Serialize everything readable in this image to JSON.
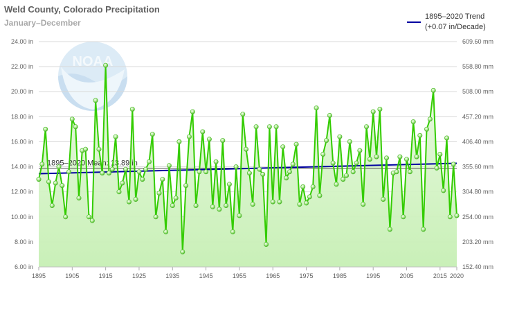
{
  "chart_data": {
    "type": "line",
    "title": "Weld County, Colorado Precipitation",
    "subtitle": "January–December",
    "x_start": 1895,
    "x_end": 2020,
    "xlim": [
      1895,
      2020
    ],
    "ylim": [
      6,
      24
    ],
    "y_ticks": [
      6,
      8,
      10,
      12,
      14,
      16,
      18,
      20,
      22,
      24
    ],
    "y_tick_labels": [
      "6.00 in",
      "8.00 in",
      "10.00 in",
      "12.00 in",
      "14.00 in",
      "16.00 in",
      "18.00 in",
      "20.00 in",
      "22.00 in",
      "24.00 in"
    ],
    "y2_tick_labels": [
      "152.40 mm",
      "203.20 mm",
      "254.00 mm",
      "304.80 mm",
      "355.60 mm",
      "406.40 mm",
      "457.20 mm",
      "508.00 mm",
      "558.80 mm",
      "609.60 mm"
    ],
    "x_ticks": [
      1895,
      1905,
      1915,
      1925,
      1935,
      1945,
      1955,
      1965,
      1975,
      1985,
      1995,
      2005,
      2015,
      2020
    ],
    "x_tick_labels": [
      "1895",
      "1905",
      "1915",
      "1925",
      "1935",
      "1945",
      "1955",
      "1965",
      "1975",
      "1985",
      "1995",
      "2005",
      "2015",
      "2020"
    ],
    "grid": true,
    "legend_position": "top-right",
    "series": [
      {
        "name": "Precipitation",
        "color": "#33cc00",
        "values": [
          13.0,
          14.2,
          17.0,
          12.8,
          10.9,
          12.7,
          14.0,
          12.5,
          10.0,
          13.6,
          17.8,
          17.2,
          11.5,
          15.3,
          15.4,
          10.0,
          9.7,
          19.3,
          15.4,
          13.5,
          22.1,
          13.5,
          13.8,
          16.4,
          12.0,
          12.7,
          13.8,
          11.2,
          18.6,
          11.4,
          13.6,
          13.0,
          13.8,
          14.4,
          16.6,
          10.0,
          11.9,
          13.0,
          8.8,
          14.1,
          10.9,
          11.5,
          16.0,
          7.2,
          12.5,
          16.4,
          18.4,
          10.9,
          13.6,
          16.8,
          13.6,
          16.2,
          10.8,
          14.4,
          10.6,
          16.1,
          10.9,
          12.6,
          8.8,
          14.0,
          10.1,
          18.2,
          15.4,
          13.5,
          11.0,
          17.2,
          13.8,
          13.4,
          7.8,
          17.2,
          11.2,
          17.2,
          11.2,
          15.6,
          13.1,
          13.6,
          14.2,
          15.8,
          11.0,
          12.4,
          11.1,
          11.6,
          12.4,
          18.7,
          11.7,
          15.0,
          16.1,
          18.1,
          14.3,
          12.6,
          16.4,
          13.0,
          13.3,
          16.0,
          13.6,
          14.3,
          15.3,
          11.0,
          17.2,
          14.6,
          18.4,
          14.8,
          18.6,
          11.4,
          14.7,
          9.0,
          13.5,
          13.6,
          14.8,
          10.0,
          14.6,
          13.6,
          17.6,
          14.8,
          16.5,
          9.0,
          17.0,
          17.8,
          20.1,
          13.9,
          15.0,
          12.1,
          16.3,
          10.0,
          14.2,
          10.1
        ]
      },
      {
        "name": "1895-2020 Trend",
        "label": "(+0.07 in/Decade)",
        "color": "#0000a0",
        "endpoints": [
          [
            1895,
            13.45
          ],
          [
            2020,
            14.28
          ]
        ]
      },
      {
        "name": "1895-2020 Mean",
        "label": "1895–2020 Mean: 13.89 in",
        "value": 13.89,
        "color": "#606060"
      }
    ]
  },
  "legend": {
    "trend_title": "1895–2020 Trend",
    "trend_rate": "(+0.07 in/Decade)"
  }
}
